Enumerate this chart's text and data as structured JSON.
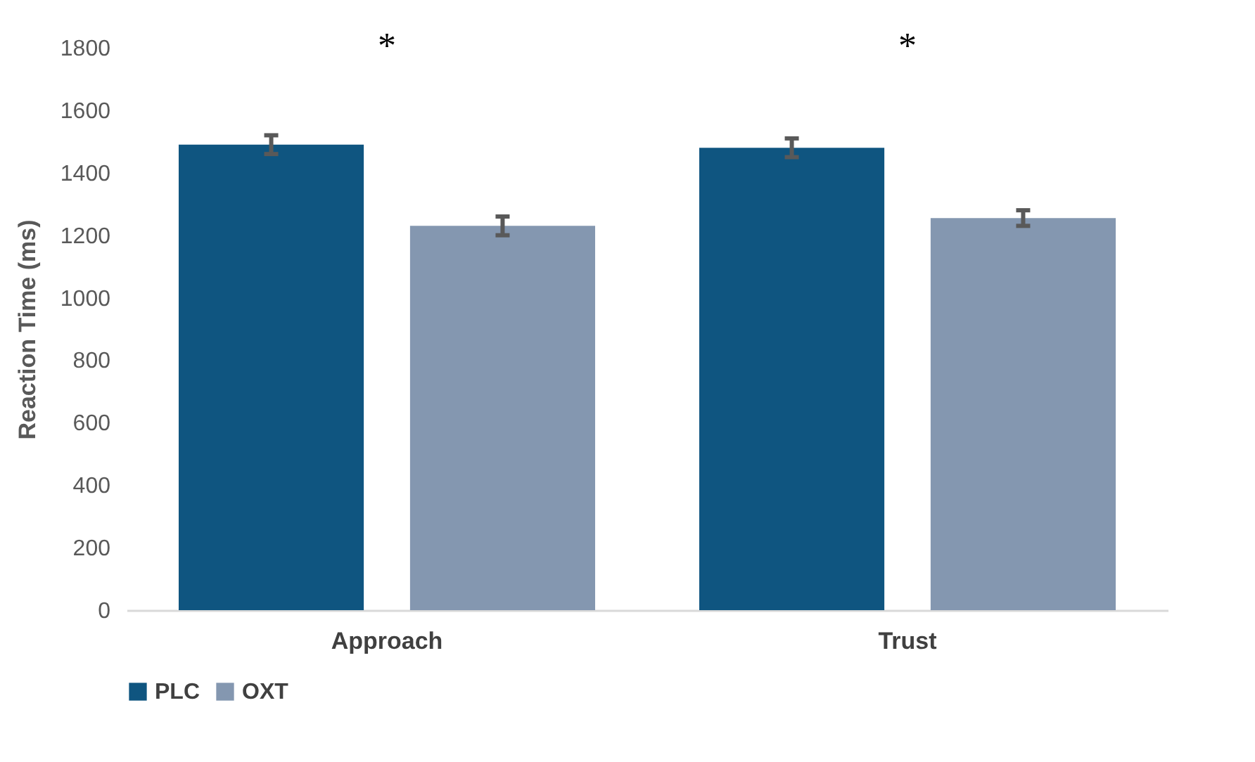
{
  "chart_data": {
    "type": "bar",
    "ylabel": "Reaction Time (ms)",
    "categories": [
      "Approach",
      "Trust"
    ],
    "series": [
      {
        "name": "PLC",
        "color": "#0f5580",
        "values": [
          1490,
          1480
        ],
        "errors": [
          30,
          30
        ]
      },
      {
        "name": "OXT",
        "color": "#8497b0",
        "values": [
          1230,
          1255
        ],
        "errors": [
          30,
          25
        ]
      }
    ],
    "ylim": [
      0,
      1800
    ],
    "yticks": [
      0,
      200,
      400,
      600,
      800,
      1000,
      1200,
      1400,
      1600,
      1800
    ],
    "grid": false,
    "legend": "bottom",
    "annotations": [
      "*",
      "*"
    ]
  }
}
